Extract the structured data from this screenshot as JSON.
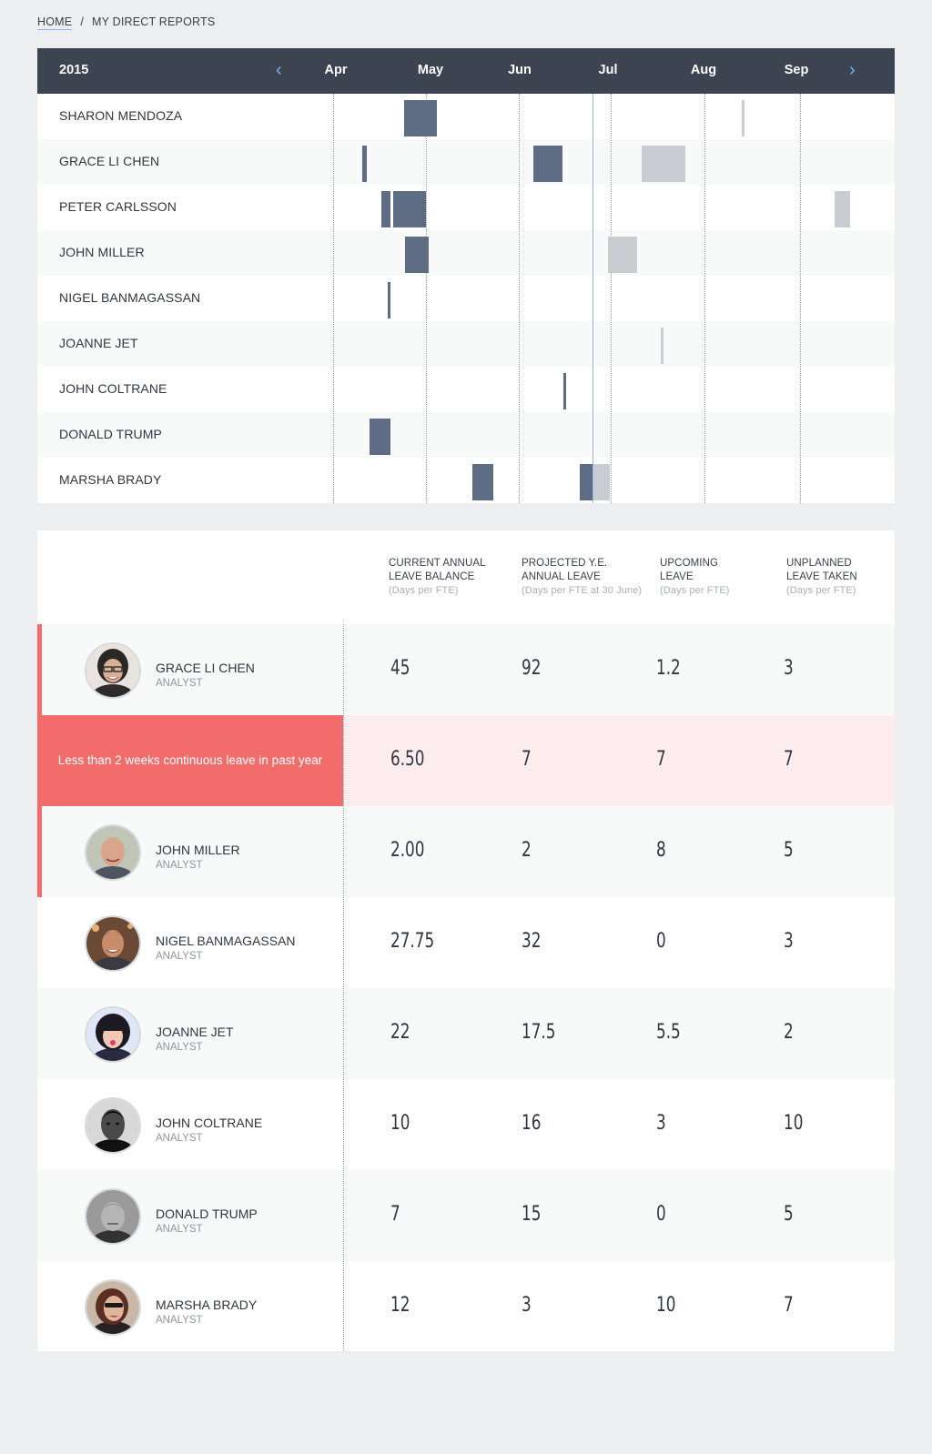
{
  "breadcrumb": {
    "home": "HOME",
    "separator": "/",
    "current": "MY DIRECT REPORTS"
  },
  "timeline": {
    "year": "2015",
    "prev_icon": "chevron-left-icon",
    "next_icon": "chevron-right-icon",
    "prev_glyph": "‹",
    "next_glyph": "›",
    "months": [
      "Apr",
      "May",
      "Jun",
      "Jul",
      "Aug",
      "Sep"
    ],
    "rows": [
      {
        "name": "SHARON MENDOZA"
      },
      {
        "name": "GRACE LI CHEN"
      },
      {
        "name": "PETER CARLSSON"
      },
      {
        "name": "JOHN MILLER"
      },
      {
        "name": "NIGEL BANMAGASSAN"
      },
      {
        "name": "JOANNE JET"
      },
      {
        "name": "JOHN COLTRANE"
      },
      {
        "name": "DONALD TRUMP"
      },
      {
        "name": "MARSHA BRADY"
      }
    ],
    "colors": {
      "taken": "#5e6d84",
      "planned": "#c9ccd1",
      "today": "#8fb7e8",
      "header": "#3c4452"
    }
  },
  "table": {
    "headers": [
      {
        "line1": "CURRENT ANNUAL",
        "line2": "LEAVE BALANCE",
        "sub": "(Days per FTE)"
      },
      {
        "line1": "PROJECTED Y.E.",
        "line2": "ANNUAL LEAVE",
        "sub": "(Days per FTE at 30 June)"
      },
      {
        "line1": "UPCOMING",
        "line2": "LEAVE",
        "sub": "(Days per FTE)"
      },
      {
        "line1": "UNPLANNED",
        "line2": "LEAVE TAKEN",
        "sub": "(Days per FTE)"
      }
    ],
    "rows": [
      {
        "name": "GRACE LI CHEN",
        "role": "ANALYST",
        "avatar": "avatar-grace",
        "values": [
          "45",
          "92",
          "1.2",
          "3"
        ]
      },
      {
        "alert": "Less than 2 weeks continuous leave in past year",
        "values": [
          "6.50",
          "7",
          "7",
          "7"
        ]
      },
      {
        "name": "JOHN MILLER",
        "role": "ANALYST",
        "avatar": "avatar-john-miller",
        "values": [
          "2.00",
          "2",
          "8",
          "5"
        ]
      },
      {
        "name": "NIGEL BANMAGASSAN",
        "role": "ANALYST",
        "avatar": "avatar-nigel",
        "values": [
          "27.75",
          "32",
          "0",
          "3"
        ]
      },
      {
        "name": "JOANNE JET",
        "role": "ANALYST",
        "avatar": "avatar-joanne",
        "values": [
          "22",
          "17.5",
          "5.5",
          "2"
        ]
      },
      {
        "name": "JOHN COLTRANE",
        "role": "ANALYST",
        "avatar": "avatar-coltrane",
        "values": [
          "10",
          "16",
          "3",
          "10"
        ]
      },
      {
        "name": "DONALD TRUMP",
        "role": "ANALYST",
        "avatar": "avatar-trump",
        "values": [
          "7",
          "15",
          "0",
          "5"
        ]
      },
      {
        "name": "MARSHA BRADY",
        "role": "ANALYST",
        "avatar": "avatar-marsha",
        "values": [
          "12",
          "3",
          "10",
          "7"
        ]
      }
    ],
    "colors": {
      "flag": "#f26c6c",
      "alert_bg": "#fcecee"
    }
  }
}
